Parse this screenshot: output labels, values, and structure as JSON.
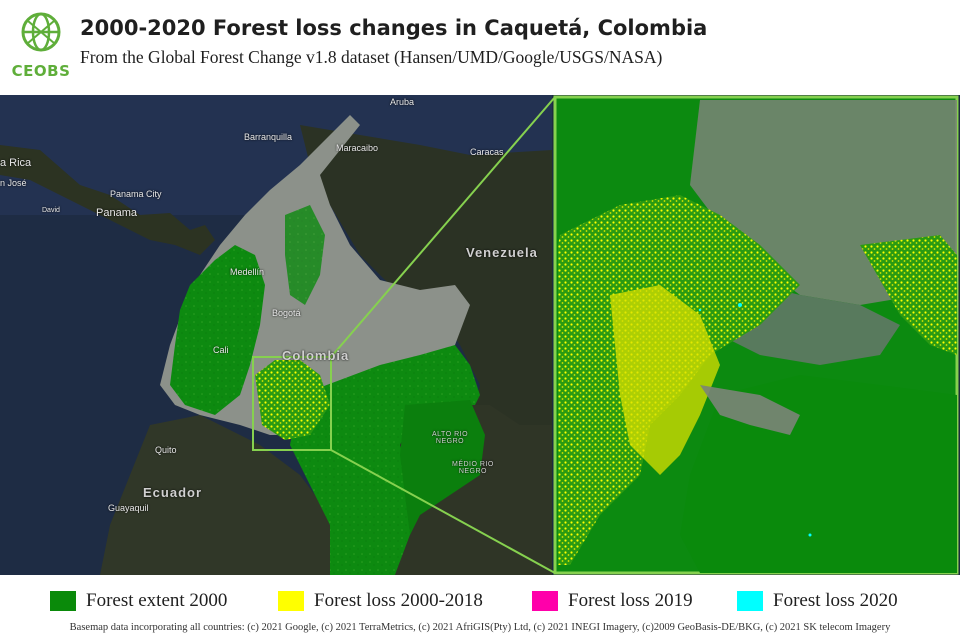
{
  "header": {
    "logo_text": "CEOBS",
    "title": "2000-2020 Forest loss changes in  Caquetá, Colombia",
    "subtitle": "From the  Global Forest Change v1.8  dataset (Hansen/UMD/Google/USGS/NASA)"
  },
  "colors": {
    "forest_extent_2000": "#0a8a0a",
    "forest_loss_2000_2018": "#ffff00",
    "forest_loss_2019": "#ff00aa",
    "forest_loss_2020": "#00ffff",
    "brand_green": "#5fae3a",
    "ocean": "#1c2a3f"
  },
  "map": {
    "labels": {
      "venezuela": "Venezuela",
      "colombia": "Colombia",
      "ecuador": "Ecuador",
      "panama": "Panama",
      "panama_city": "Panama City",
      "costa_rica": "a Rica",
      "jose": "n José",
      "aruba": "Aruba",
      "barranquilla": "Barranquilla",
      "maracaibo": "Maracaibo",
      "caracas": "Caracas",
      "medellin": "Medellín",
      "bogota": "Bogotá",
      "cali": "Cali",
      "quito": "Quito",
      "guayaquil": "Guayaquil",
      "alto_rio_negro": "ALTO RIO\nNEGRO",
      "medio_rio_negro": "MÉDIO RIO\nNEGRO",
      "david": "David"
    }
  },
  "legend": [
    {
      "label": "Forest extent 2000",
      "color": "#0a8a0a"
    },
    {
      "label": "Forest loss 2000-2018",
      "color": "#ffff00"
    },
    {
      "label": "Forest loss 2019",
      "color": "#ff00aa"
    },
    {
      "label": "Forest loss 2020",
      "color": "#00ffff"
    }
  ],
  "credits": "Basemap data incorporating all countries: (c) 2021 Google, (c) 2021 TerraMetrics, (c) 2021 AfriGIS(Pty) Ltd, (c) 2021 INEGI Imagery, (c)2009 GeoBasis-DE/BKG, (c) 2021 SK telecom Imagery"
}
